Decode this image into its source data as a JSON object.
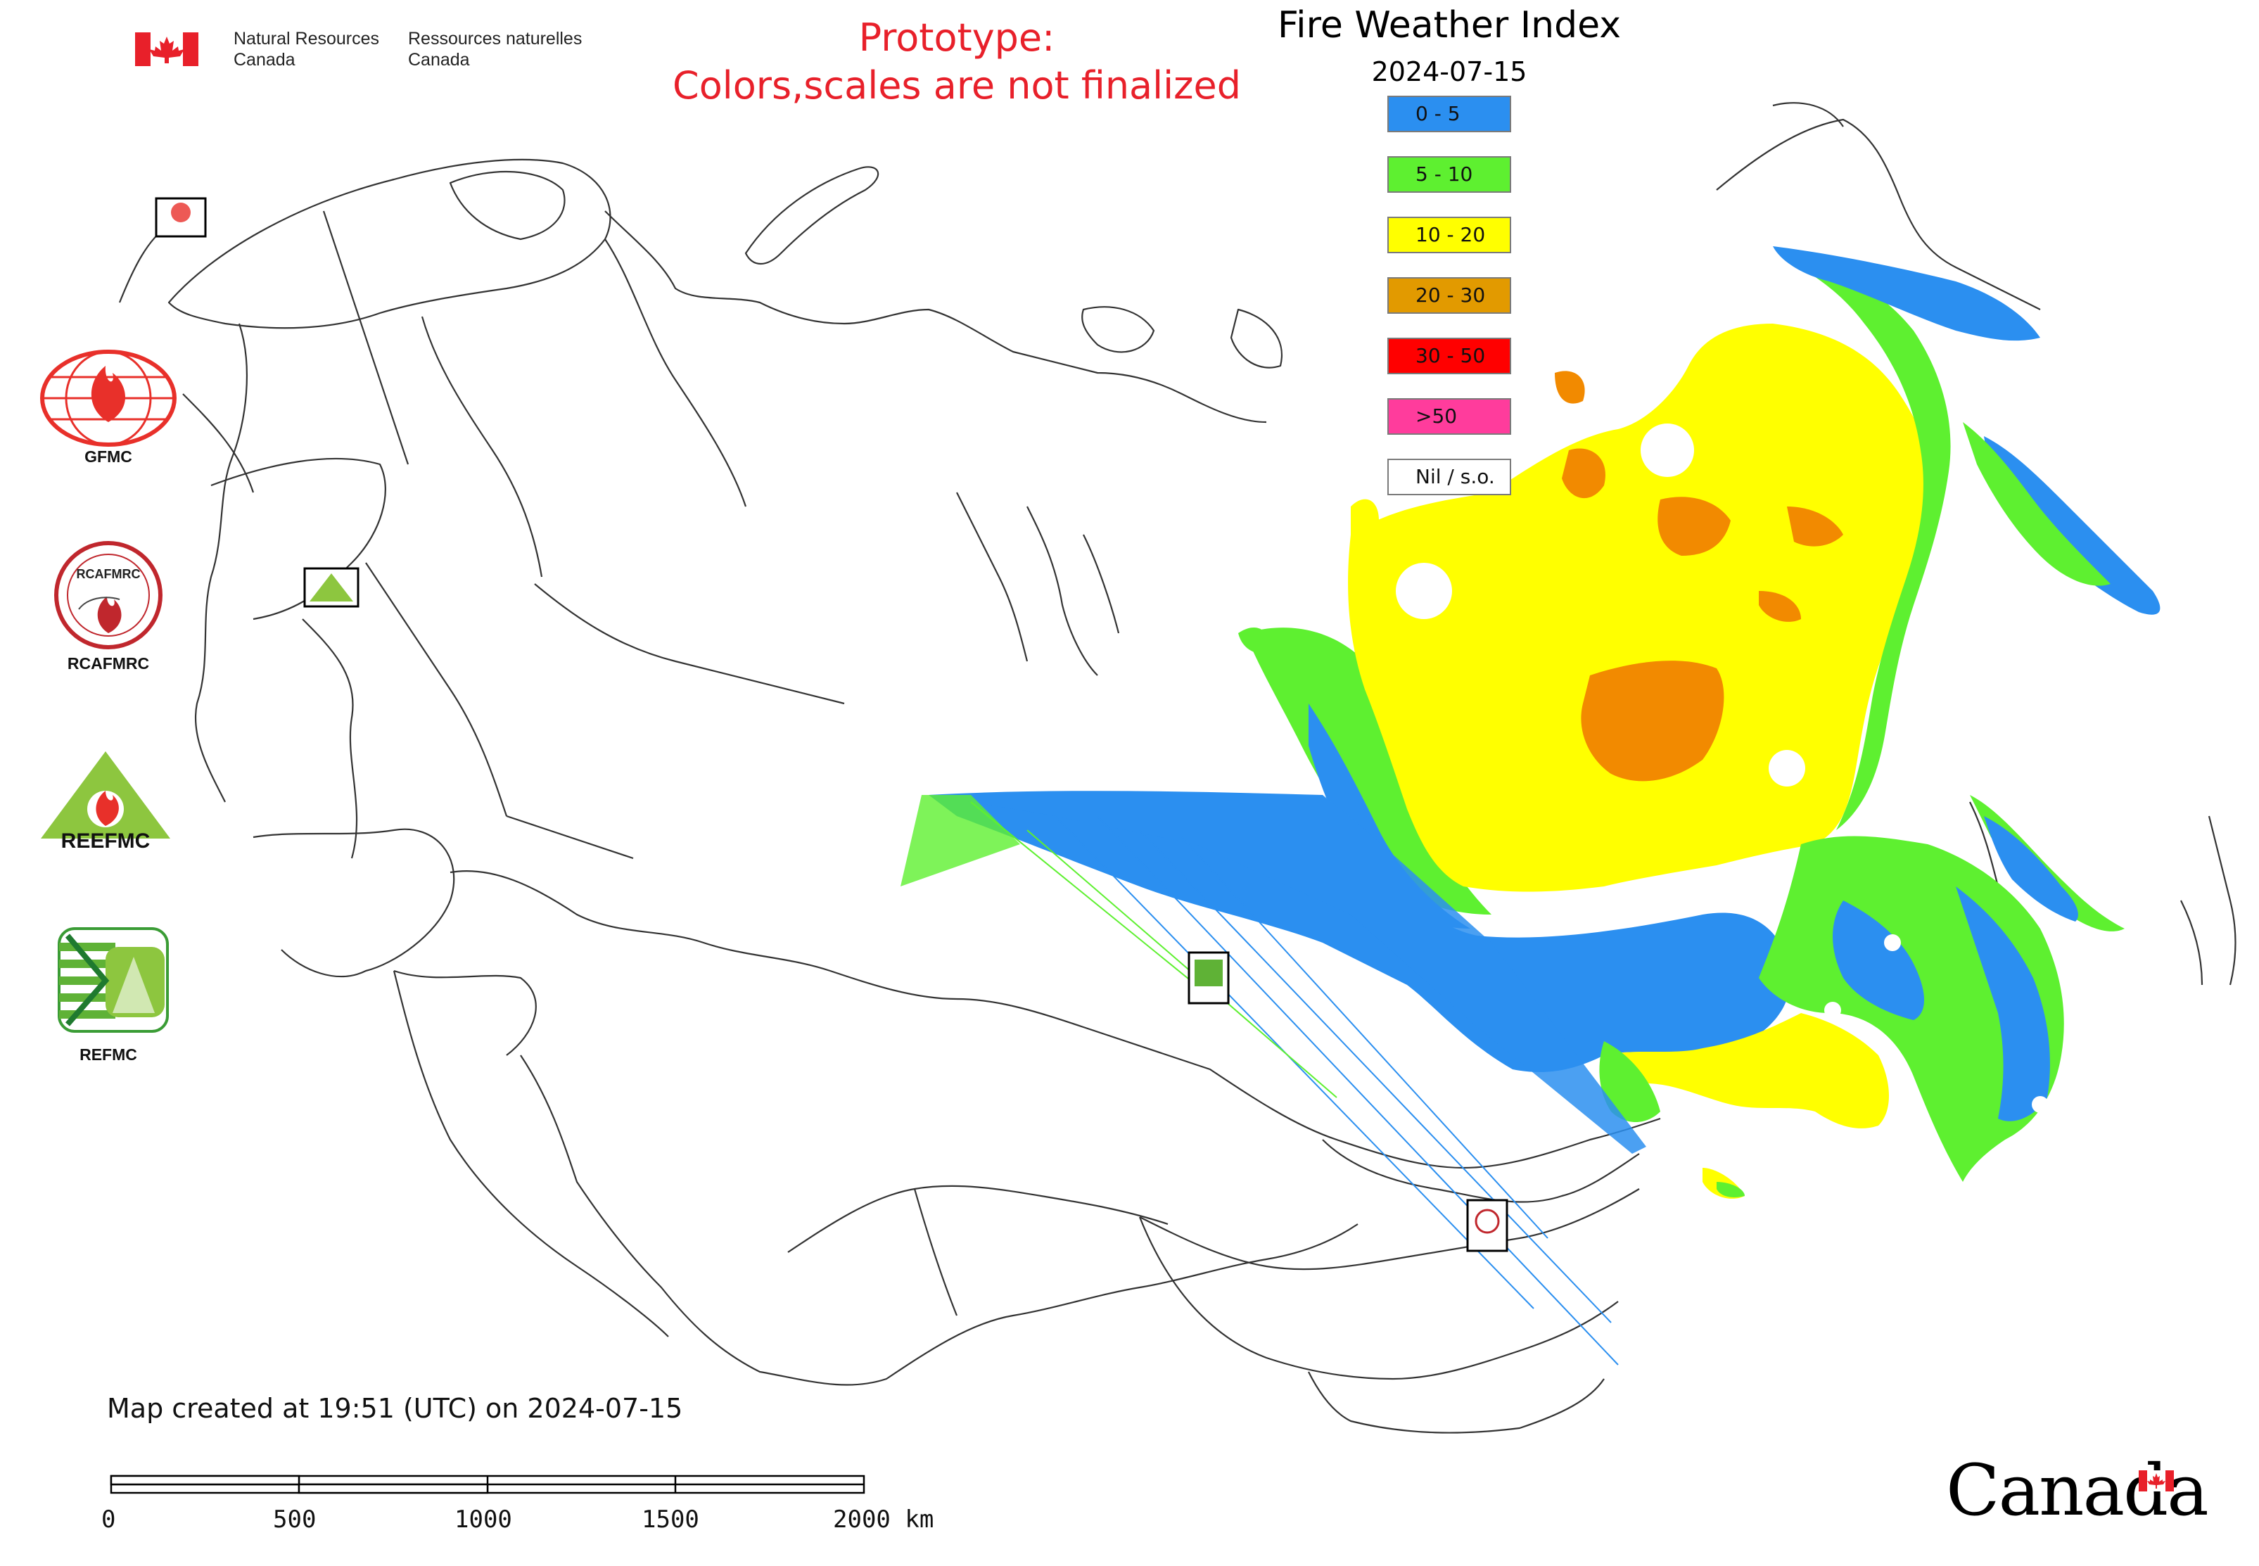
{
  "header": {
    "agency_en_line1": "Natural Resources",
    "agency_en_line2": "Canada",
    "agency_fr_line1": "Ressources naturelles",
    "agency_fr_line2": "Canada"
  },
  "notice": {
    "line1": "Prototype:",
    "line2": "Colors,scales are not finalized",
    "color": "#e8202a"
  },
  "map": {
    "title": "Fire Weather Index",
    "date": "2024-07-15",
    "created_text": "Map created at 19:51 (UTC) on 2024-07-15"
  },
  "legend": [
    {
      "label": "0 - 5",
      "color": "#2b8ff0"
    },
    {
      "label": "5 - 10",
      "color": "#5ef030"
    },
    {
      "label": "10 - 20",
      "color": "#ffff00"
    },
    {
      "label": "20 - 30",
      "color": "#e29a00"
    },
    {
      "label": "30 - 50",
      "color": "#ff0000"
    },
    {
      "label": ">50",
      "color": "#ff3c9c"
    },
    {
      "label": "Nil / s.o.",
      "color": "#ffffff"
    }
  ],
  "scale_bar": {
    "labels": [
      "0",
      "500",
      "1000",
      "1500",
      "2000 km"
    ]
  },
  "organizations": [
    {
      "label": "GFMC"
    },
    {
      "label": "RCAFMRC"
    },
    {
      "label": "REFMC"
    }
  ],
  "logo_text": {
    "rcafmrc": "RCAFMRC",
    "reefmc": "REEFMC"
  },
  "wordmark": "Canada",
  "icons": [
    "canada-flag-icon",
    "gfmc-logo",
    "rcafmrc-logo",
    "reefmc-logo",
    "refmc-logo",
    "canada-wordmark"
  ]
}
